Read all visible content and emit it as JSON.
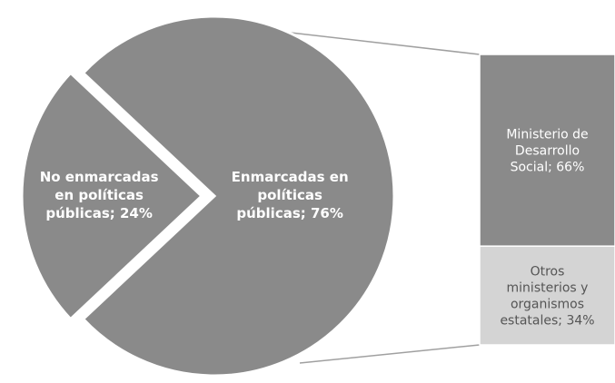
{
  "chart_data": {
    "type": "pie",
    "subtype": "bar-of-pie",
    "pie": {
      "slices": [
        {
          "label_lines": [
            "No enmarcadas",
            "en políticas",
            "públicas; 24%"
          ],
          "value": 24,
          "color": "#8a8a8a",
          "exploded": true
        },
        {
          "label_lines": [
            "Enmarcadas en",
            "políticas",
            "públicas; 76%"
          ],
          "value": 76,
          "color": "#8a8a8a",
          "exploded": false
        }
      ]
    },
    "bar": {
      "breakdown_of": "Enmarcadas en políticas públicas",
      "segments": [
        {
          "label_lines": [
            "Ministerio de",
            "Desarrollo",
            "Social; 66%"
          ],
          "value": 66,
          "color": "#8a8a8a",
          "text_color": "#ffffff"
        },
        {
          "label_lines": [
            "Otros",
            "ministerios y",
            "organismos",
            "estatales; 34%"
          ],
          "value": 34,
          "color": "#d4d4d4",
          "text_color": "#555555"
        }
      ]
    },
    "connector_color": "#a0a0a0"
  }
}
